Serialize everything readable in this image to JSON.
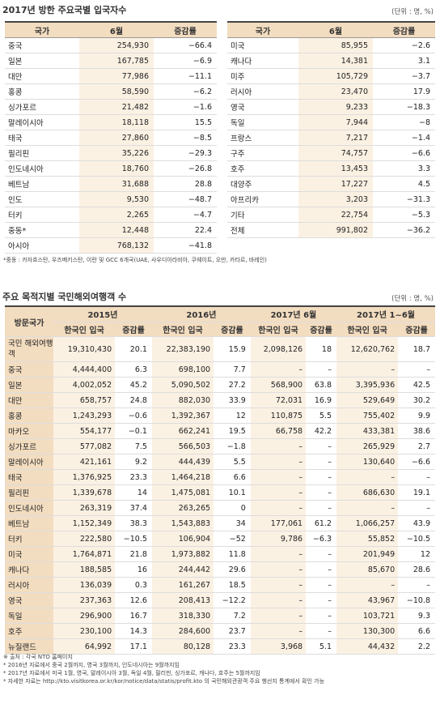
{
  "section1": {
    "title": "2017년 방한 주요국별 입국자수",
    "unit": "(단위 : 명, %)",
    "headers": [
      "국가",
      "6월",
      "증감률"
    ],
    "left": [
      [
        "중국",
        "254,930",
        "−66.4"
      ],
      [
        "일본",
        "167,785",
        "−6.9"
      ],
      [
        "대만",
        "77,986",
        "−11.1"
      ],
      [
        "홍콩",
        "58,590",
        "−6.2"
      ],
      [
        "싱가포르",
        "21,482",
        "−1.6"
      ],
      [
        "말레이시아",
        "18,118",
        "15.5"
      ],
      [
        "태국",
        "27,860",
        "−8.5"
      ],
      [
        "필리핀",
        "35,226",
        "−29.3"
      ],
      [
        "인도네시아",
        "18,760",
        "−26.8"
      ],
      [
        "베트남",
        "31,688",
        "28.8"
      ],
      [
        "인도",
        "9,530",
        "−48.7"
      ],
      [
        "터키",
        "2,265",
        "−4.7"
      ],
      [
        "중동*",
        "12,448",
        "22.4"
      ],
      [
        "아시아",
        "768,132",
        "−41.8"
      ]
    ],
    "right": [
      [
        "미국",
        "85,955",
        "−2.6"
      ],
      [
        "캐나다",
        "14,381",
        "3.1"
      ],
      [
        "미주",
        "105,729",
        "−3.7"
      ],
      [
        "러시아",
        "23,470",
        "17.9"
      ],
      [
        "영국",
        "9,233",
        "−18.3"
      ],
      [
        "독일",
        "7,944",
        "−8"
      ],
      [
        "프랑스",
        "7,217",
        "−1.4"
      ],
      [
        "구주",
        "74,757",
        "−6.6"
      ],
      [
        "호주",
        "13,453",
        "3.3"
      ],
      [
        "대양주",
        "17,227",
        "4.5"
      ],
      [
        "아프리카",
        "3,203",
        "−31.3"
      ],
      [
        "기타",
        "22,754",
        "−5.3"
      ],
      [
        "전체",
        "991,802",
        "−36.2"
      ]
    ],
    "footnote": "*중동 : 카자흐스탄, 우즈베키스탄, 이란 및 GCC 6개국(UAE, 사우디아라비아, 쿠웨이트, 오만, 카타르, 바레인)"
  },
  "section2": {
    "title": "주요 목적지별 국민해외여행객 수",
    "unit": "(단위 : 명, %)",
    "corner": "방문국가",
    "periods": [
      "2015년",
      "2016년",
      "2017년 6월",
      "2017년 1~6월"
    ],
    "sub": [
      "한국인 입국",
      "증감률"
    ],
    "rows": [
      [
        "국민 해외여행객",
        "19,310,430",
        "20.1",
        "22,383,190",
        "15.9",
        "2,098,126",
        "18",
        "12,620,762",
        "18.7"
      ],
      [
        "중국",
        "4,444,400",
        "6.3",
        "698,100",
        "7.7",
        "–",
        "–",
        "–",
        "–"
      ],
      [
        "일본",
        "4,002,052",
        "45.2",
        "5,090,502",
        "27.2",
        "568,900",
        "63.8",
        "3,395,936",
        "42.5"
      ],
      [
        "대만",
        "658,757",
        "24.8",
        "882,030",
        "33.9",
        "72,031",
        "16.9",
        "529,649",
        "30.2"
      ],
      [
        "홍콩",
        "1,243,293",
        "−0.6",
        "1,392,367",
        "12",
        "110,875",
        "5.5",
        "755,402",
        "9.9"
      ],
      [
        "마카오",
        "554,177",
        "−0.1",
        "662,241",
        "19.5",
        "66,758",
        "42.2",
        "433,381",
        "38.6"
      ],
      [
        "싱가포르",
        "577,082",
        "7.5",
        "566,503",
        "−1.8",
        "–",
        "–",
        "265,929",
        "2.7"
      ],
      [
        "말레이시아",
        "421,161",
        "9.2",
        "444,439",
        "5.5",
        "–",
        "–",
        "130,640",
        "−6.6"
      ],
      [
        "태국",
        "1,376,925",
        "23.3",
        "1,464,218",
        "6.6",
        "–",
        "–",
        "–",
        "–"
      ],
      [
        "필리핀",
        "1,339,678",
        "14",
        "1,475,081",
        "10.1",
        "–",
        "–",
        "686,630",
        "19.1"
      ],
      [
        "인도네시아",
        "263,319",
        "37.4",
        "263,265",
        "0",
        "–",
        "–",
        "–",
        "–"
      ],
      [
        "베트남",
        "1,152,349",
        "38.3",
        "1,543,883",
        "34",
        "177,061",
        "61.2",
        "1,066,257",
        "43.9"
      ],
      [
        "터키",
        "222,580",
        "−10.5",
        "106,904",
        "−52",
        "9,786",
        "−6.3",
        "55,852",
        "−10.5"
      ],
      [
        "미국",
        "1,764,871",
        "21.8",
        "1,973,882",
        "11.8",
        "–",
        "–",
        "201,949",
        "12"
      ],
      [
        "캐나다",
        "188,585",
        "16",
        "244,442",
        "29.6",
        "–",
        "–",
        "85,670",
        "28.6"
      ],
      [
        "러시아",
        "136,039",
        "0.3",
        "161,267",
        "18.5",
        "–",
        "–",
        "–",
        "–"
      ],
      [
        "영국",
        "237,363",
        "12.6",
        "208,413",
        "−12.2",
        "–",
        "–",
        "43,967",
        "−10.8"
      ],
      [
        "독일",
        "296,900",
        "16.7",
        "318,330",
        "7.2",
        "–",
        "–",
        "103,721",
        "9.3"
      ],
      [
        "호주",
        "230,100",
        "14.3",
        "284,600",
        "23.7",
        "–",
        "–",
        "130,300",
        "6.6"
      ],
      [
        "뉴질랜드",
        "64,992",
        "17.1",
        "80,128",
        "23.3",
        "3,968",
        "5.1",
        "44,432",
        "2.2"
      ]
    ],
    "notes": [
      "※ 출처 : 각국 NTO 홈페이지",
      "* 2016년 자료에서 중국 2월까지, 영국 3월까지, 인도네시아는 9월까지임",
      "* 2017년 자료에서 미국 1월, 영국, 말레이시아 3월, 독일 4월, 필리핀, 싱가포르, 캐나다, 호주는 5월까지임",
      "* 자세한 자료는 http://kto.visitkorea.or.kr/kor/notice/data/statis/profit.kto 의 국민해외관광객 주요 행선지 통계에서 확인 가능"
    ]
  }
}
